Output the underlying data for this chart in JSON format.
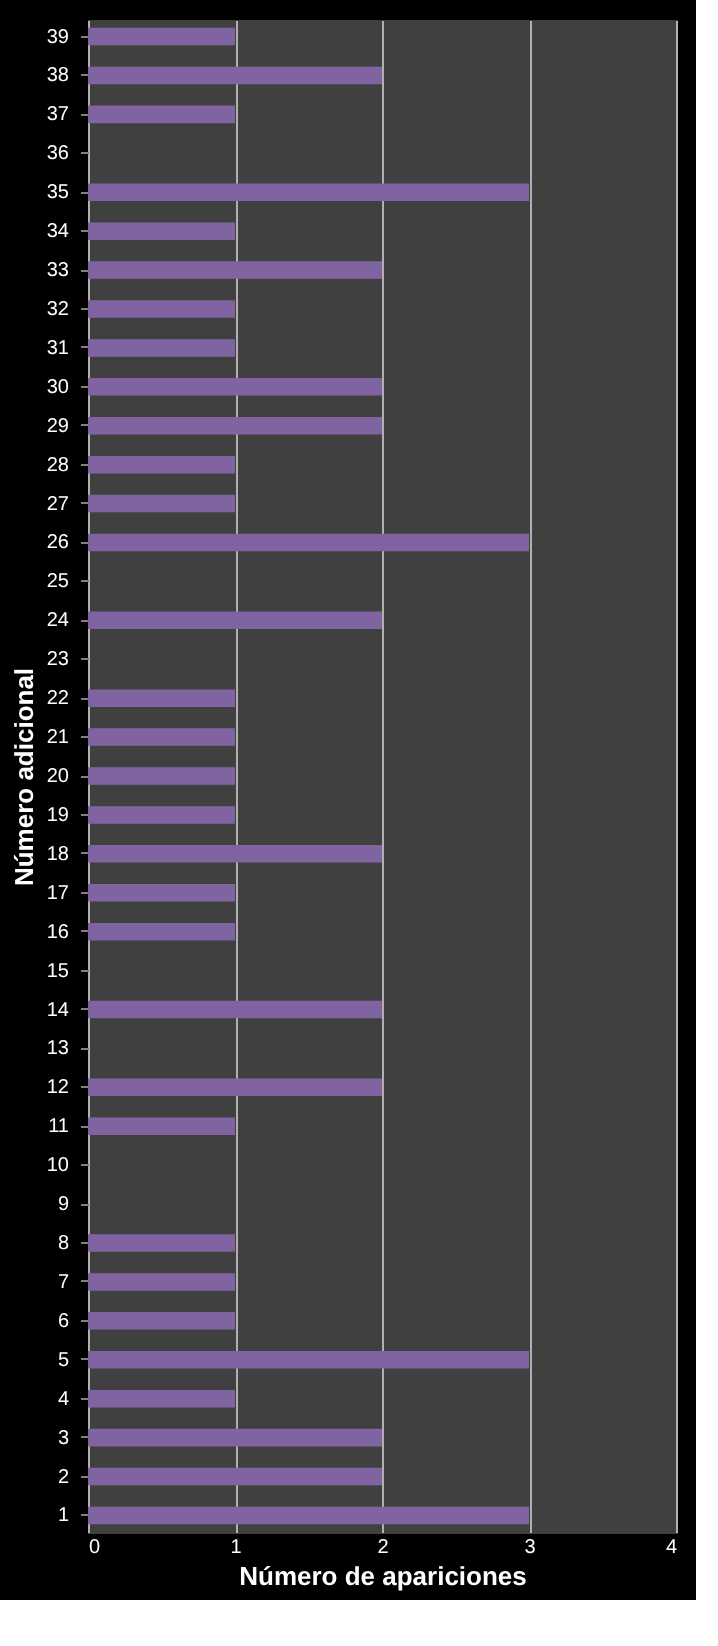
{
  "chart_data": {
    "type": "bar",
    "orientation": "horizontal",
    "xlabel": "Número de apariciones",
    "ylabel": "Número adicional",
    "categories": [
      "39",
      "38",
      "37",
      "36",
      "35",
      "34",
      "33",
      "32",
      "31",
      "30",
      "29",
      "28",
      "27",
      "26",
      "25",
      "24",
      "23",
      "22",
      "21",
      "20",
      "19",
      "18",
      "17",
      "16",
      "15",
      "14",
      "13",
      "12",
      "11",
      "10",
      "9",
      "8",
      "7",
      "6",
      "5",
      "4",
      "3",
      "2",
      "1"
    ],
    "values": [
      1,
      2,
      1,
      0,
      3,
      1,
      2,
      1,
      1,
      2,
      2,
      1,
      1,
      3,
      0,
      2,
      0,
      1,
      1,
      1,
      1,
      2,
      1,
      1,
      0,
      2,
      0,
      2,
      1,
      0,
      0,
      1,
      1,
      1,
      3,
      1,
      2,
      2,
      3
    ],
    "color": "#8064a2",
    "xlim": [
      0,
      4
    ],
    "xticks": [
      0,
      1,
      2,
      3,
      4
    ],
    "grid": "x"
  }
}
